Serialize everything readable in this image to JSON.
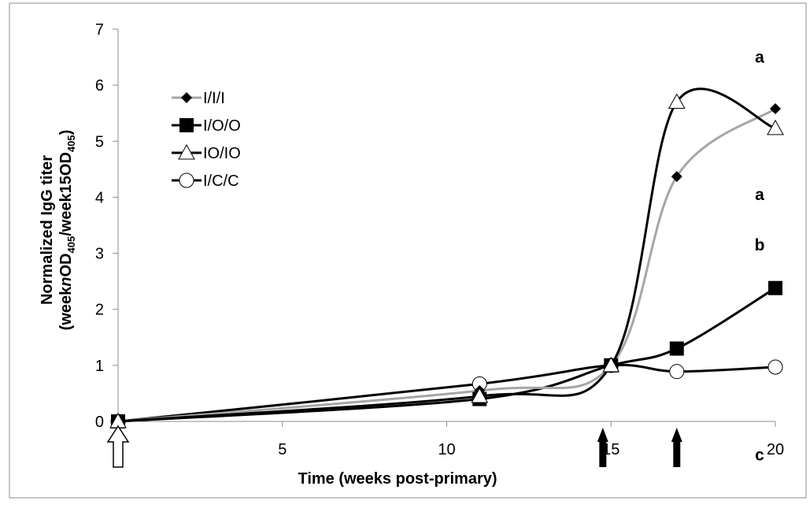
{
  "chart_data": {
    "type": "line",
    "xlabel": "Time (weeks post-primary)",
    "ylabel_line1": "Normalized IgG titer",
    "ylabel_line2": {
      "a": "(week",
      "b": "n",
      "c": "OD",
      "d": "405",
      "e": "/week15OD",
      "f": "405",
      "g": ")"
    },
    "xlim": [
      0,
      20
    ],
    "ylim": [
      0,
      7
    ],
    "x_ticks": [
      5,
      10,
      15,
      20
    ],
    "x_tick_labels": [
      "5",
      "10",
      "15",
      "20"
    ],
    "y_ticks": [
      0,
      1,
      2,
      3,
      4,
      5,
      6,
      7
    ],
    "y_tick_labels": [
      "0",
      "1",
      "2",
      "3",
      "4",
      "5",
      "6",
      "7"
    ],
    "legend_position": "upper-left",
    "series": [
      {
        "name": "I/I/I",
        "color": "#a6a6a6",
        "marker": "diamond-filled",
        "x": [
          0,
          11,
          15,
          17,
          20
        ],
        "y": [
          0,
          0.55,
          1.0,
          4.37,
          5.58
        ]
      },
      {
        "name": "I/O/O",
        "color": "#000000",
        "marker": "square-filled",
        "x": [
          0,
          11,
          15,
          17,
          20
        ],
        "y": [
          0,
          0.4,
          1.0,
          1.3,
          2.38
        ]
      },
      {
        "name": "IO/IO",
        "color": "#000000",
        "marker": "triangle-open",
        "x": [
          0,
          11,
          15,
          17,
          20
        ],
        "y": [
          0,
          0.45,
          1.0,
          5.7,
          5.23
        ]
      },
      {
        "name": "I/C/C",
        "color": "#000000",
        "marker": "circle-open",
        "x": [
          0,
          11,
          15,
          17,
          20
        ],
        "y": [
          0,
          0.67,
          1.0,
          0.89,
          0.97
        ]
      }
    ],
    "annotations": [
      {
        "text": "a",
        "x": 20,
        "y": 6.5
      },
      {
        "text": "a",
        "x": 20,
        "y": 4.05
      },
      {
        "text": "b",
        "x": 20,
        "y": 3.15
      },
      {
        "text": "c",
        "x": 20,
        "y": -0.6
      }
    ],
    "arrows": [
      {
        "kind": "open",
        "x": 0
      },
      {
        "kind": "filled",
        "x": 14.75
      },
      {
        "kind": "filled",
        "x": 17
      }
    ]
  }
}
